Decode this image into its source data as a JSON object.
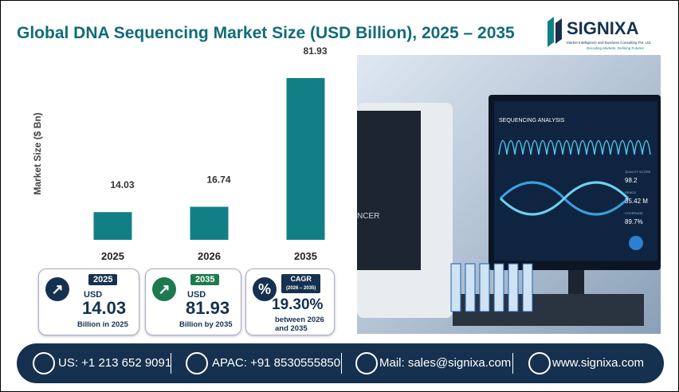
{
  "chart_data": {
    "type": "bar",
    "title": "Global DNA Sequencing Market Size (USD Billion), 2025 – 2035",
    "y_label": "Market Size ($ Bn)",
    "categories": [
      "2025",
      "2026",
      "2035"
    ],
    "values": [
      14.03,
      16.74,
      81.93
    ],
    "color": "#127f87"
  },
  "logo": {
    "name": "SIGNIXA",
    "subtitle": "Market Intelligence and Business Consulting Pvt. Ltd.",
    "tagline": "Decoding Markets, Defining Futures"
  },
  "cards": [
    {
      "badge": "2025",
      "unit": "USD",
      "value": "14.03",
      "caption": "Billion in 2025"
    },
    {
      "badge": "2035",
      "unit": "USD",
      "value": "81.93",
      "caption": "Billion by 2035"
    },
    {
      "icon": "%",
      "badge": "CAGR",
      "badge_sub": "(2026 – 2035)",
      "value": "19.30%",
      "caption": "between 2026 and 2035"
    }
  ],
  "image": {
    "screen_title": "SEQUENCING ANALYSIS",
    "stat1_label": "QUALITY SCORE",
    "stat1": "98.2",
    "stat2_label": "READS",
    "stat2": "35.42 M",
    "stat3_label": "COVERAGE",
    "stat3": "89.7%",
    "machine_text": "NCER"
  },
  "footer": [
    "US: +1 213 652 9091",
    "APAC: +91 8530555850",
    "Mail: sales@signixa.com",
    "www.signixa.com"
  ]
}
